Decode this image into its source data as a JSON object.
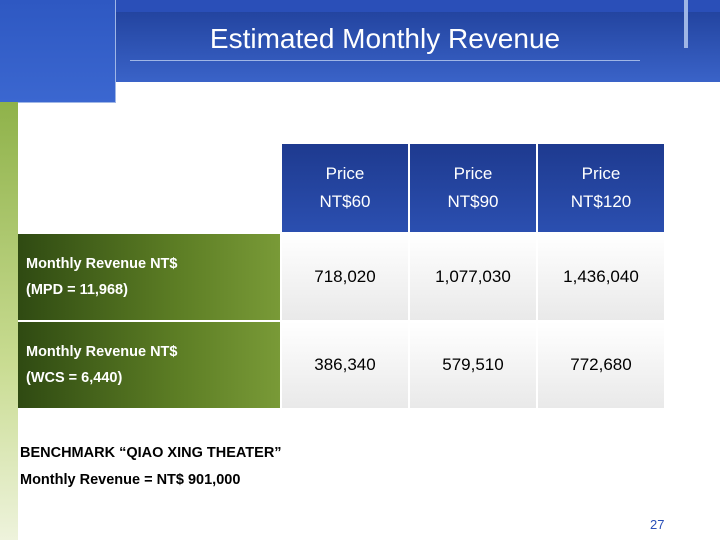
{
  "slide": {
    "title": "Estimated Monthly Revenue",
    "page_number": "27"
  },
  "table": {
    "columns": [
      {
        "line1": "Price",
        "line2": "NT$60"
      },
      {
        "line1": "Price",
        "line2": "NT$90"
      },
      {
        "line1": "Price",
        "line2": "NT$120"
      }
    ],
    "rows": [
      {
        "label_line1": "Monthly Revenue  NT$",
        "label_line2": "(MPD = 11,968)",
        "values": [
          "718,020",
          "1,077,030",
          "1,436,040"
        ]
      },
      {
        "label_line1": "Monthly Revenue NT$",
        "label_line2": "(WCS = 6,440)",
        "values": [
          "386,340",
          "579,510",
          "772,680"
        ]
      }
    ]
  },
  "benchmark": {
    "line1": "BENCHMARK “QIAO XING THEATER”",
    "line2": "Monthly Revenue = NT$ 901,000"
  },
  "colors": {
    "header_blue": "#2a4fb8",
    "row_green": "#5c7d24",
    "accent_green": "#8fb24a"
  }
}
